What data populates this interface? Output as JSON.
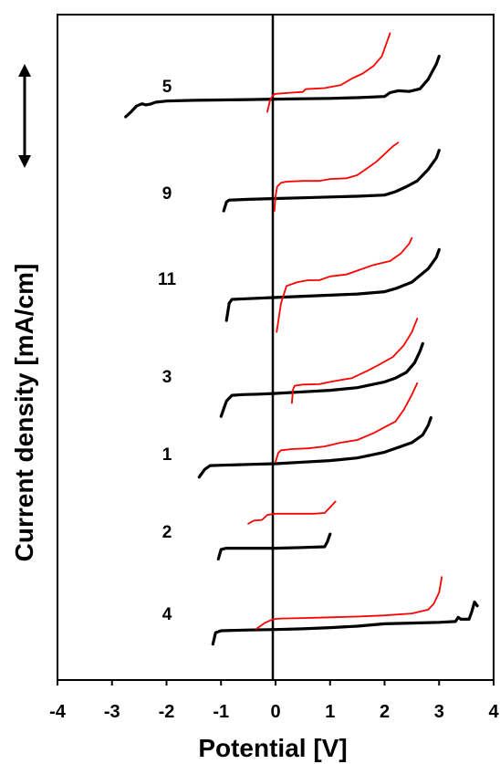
{
  "chart_data": {
    "type": "line",
    "title": "",
    "xlabel": "Potential [V]",
    "ylabel": "Current density [mA/cm]",
    "xlim": [
      -4,
      4
    ],
    "xticks": [
      "-4",
      "-3",
      "-2",
      "-1",
      "0",
      "1",
      "2",
      "3",
      "4"
    ],
    "y_scale_bar": "vertical double-headed arrow (scale indicator)",
    "colors": {
      "black_series": "#000000",
      "red_series": "#ff0000",
      "zero_line": "#000000"
    },
    "curves": [
      {
        "label": "5",
        "black": [
          [
            -2.75,
            -0.38
          ],
          [
            -2.65,
            -0.25
          ],
          [
            -2.55,
            -0.1
          ],
          [
            -2.45,
            -0.04
          ],
          [
            -2.38,
            -0.07
          ],
          [
            -2.3,
            -0.05
          ],
          [
            -2.2,
            0
          ],
          [
            -2.0,
            0.03
          ],
          [
            -1.5,
            0.05
          ],
          [
            -1.0,
            0.06
          ],
          [
            -0.5,
            0.07
          ],
          [
            0,
            0.08
          ],
          [
            0.5,
            0.09
          ],
          [
            1.0,
            0.1
          ],
          [
            1.5,
            0.12
          ],
          [
            2.0,
            0.15
          ],
          [
            2.1,
            0.25
          ],
          [
            2.25,
            0.3
          ],
          [
            2.45,
            0.28
          ],
          [
            2.65,
            0.35
          ],
          [
            2.8,
            0.6
          ],
          [
            2.95,
            1.0
          ],
          [
            3.0,
            1.2
          ]
        ],
        "red": [
          [
            -0.15,
            -0.25
          ],
          [
            -0.1,
            0.05
          ],
          [
            -0.05,
            0.18
          ],
          [
            0,
            0.22
          ],
          [
            0.3,
            0.25
          ],
          [
            0.5,
            0.27
          ],
          [
            0.55,
            0.34
          ],
          [
            0.9,
            0.37
          ],
          [
            1.2,
            0.45
          ],
          [
            1.4,
            0.62
          ],
          [
            1.6,
            0.75
          ],
          [
            1.8,
            0.95
          ],
          [
            1.95,
            1.2
          ],
          [
            2.05,
            1.6
          ],
          [
            2.1,
            1.8
          ]
        ]
      },
      {
        "label": "9",
        "black": [
          [
            -0.95,
            -0.38
          ],
          [
            -0.9,
            -0.15
          ],
          [
            -0.85,
            -0.1
          ],
          [
            -0.5,
            -0.08
          ],
          [
            0,
            -0.06
          ],
          [
            0.5,
            -0.04
          ],
          [
            1.0,
            -0.02
          ],
          [
            1.5,
            0
          ],
          [
            2.0,
            0.03
          ],
          [
            2.2,
            0.12
          ],
          [
            2.4,
            0.25
          ],
          [
            2.6,
            0.4
          ],
          [
            2.8,
            0.7
          ],
          [
            2.95,
            1.0
          ],
          [
            3.0,
            1.2
          ]
        ],
        "red": [
          [
            -0.02,
            -0.38
          ],
          [
            0,
            0
          ],
          [
            0.03,
            0.25
          ],
          [
            0.1,
            0.35
          ],
          [
            0.2,
            0.38
          ],
          [
            0.5,
            0.4
          ],
          [
            0.8,
            0.4
          ],
          [
            1.0,
            0.45
          ],
          [
            1.3,
            0.47
          ],
          [
            1.5,
            0.55
          ],
          [
            1.7,
            0.75
          ],
          [
            1.85,
            0.9
          ],
          [
            2.0,
            1.1
          ],
          [
            2.15,
            1.3
          ],
          [
            2.25,
            1.4
          ]
        ]
      },
      {
        "label": "11",
        "black": [
          [
            -0.9,
            -0.55
          ],
          [
            -0.85,
            -0.1
          ],
          [
            -0.8,
            0.0
          ],
          [
            -0.5,
            0.02
          ],
          [
            0,
            0.05
          ],
          [
            0.5,
            0.08
          ],
          [
            1.0,
            0.11
          ],
          [
            1.5,
            0.14
          ],
          [
            2.0,
            0.2
          ],
          [
            2.2,
            0.28
          ],
          [
            2.5,
            0.45
          ],
          [
            2.8,
            0.8
          ],
          [
            2.95,
            1.1
          ],
          [
            3.0,
            1.3
          ]
        ],
        "red": [
          [
            0.02,
            -0.85
          ],
          [
            0.1,
            -0.1
          ],
          [
            0.2,
            0.35
          ],
          [
            0.4,
            0.45
          ],
          [
            0.6,
            0.5
          ],
          [
            0.8,
            0.5
          ],
          [
            1.0,
            0.6
          ],
          [
            1.3,
            0.65
          ],
          [
            1.5,
            0.75
          ],
          [
            1.8,
            0.9
          ],
          [
            2.1,
            1.0
          ],
          [
            2.3,
            1.2
          ],
          [
            2.45,
            1.45
          ],
          [
            2.5,
            1.6
          ]
        ]
      },
      {
        "label": "3",
        "black": [
          [
            -1.0,
            -0.6
          ],
          [
            -0.9,
            -0.2
          ],
          [
            -0.8,
            -0.05
          ],
          [
            -0.6,
            -0.03
          ],
          [
            -0.3,
            -0.02
          ],
          [
            0,
            0
          ],
          [
            0.5,
            0.04
          ],
          [
            1.0,
            0.08
          ],
          [
            1.5,
            0.15
          ],
          [
            2.0,
            0.3
          ],
          [
            2.2,
            0.4
          ],
          [
            2.4,
            0.55
          ],
          [
            2.55,
            0.8
          ],
          [
            2.65,
            1.1
          ],
          [
            2.7,
            1.3
          ]
        ],
        "red": [
          [
            0.3,
            -0.25
          ],
          [
            0.32,
            0.1
          ],
          [
            0.35,
            0.2
          ],
          [
            0.5,
            0.23
          ],
          [
            0.8,
            0.24
          ],
          [
            1.0,
            0.3
          ],
          [
            1.4,
            0.4
          ],
          [
            1.7,
            0.6
          ],
          [
            1.9,
            0.75
          ],
          [
            2.15,
            0.95
          ],
          [
            2.35,
            1.25
          ],
          [
            2.5,
            1.6
          ],
          [
            2.6,
            1.95
          ]
        ]
      },
      {
        "label": "1",
        "black": [
          [
            -1.4,
            -0.35
          ],
          [
            -1.3,
            -0.15
          ],
          [
            -1.2,
            -0.05
          ],
          [
            -1.0,
            -0.04
          ],
          [
            -0.5,
            -0.02
          ],
          [
            0,
            0
          ],
          [
            0.5,
            0.04
          ],
          [
            1.0,
            0.08
          ],
          [
            1.5,
            0.15
          ],
          [
            2.0,
            0.3
          ],
          [
            2.3,
            0.45
          ],
          [
            2.5,
            0.55
          ],
          [
            2.7,
            0.75
          ],
          [
            2.8,
            1.0
          ],
          [
            2.85,
            1.2
          ]
        ],
        "red": [
          [
            0.0,
            0.05
          ],
          [
            0.05,
            0.28
          ],
          [
            0.1,
            0.35
          ],
          [
            0.3,
            0.38
          ],
          [
            0.6,
            0.4
          ],
          [
            0.9,
            0.45
          ],
          [
            1.2,
            0.55
          ],
          [
            1.5,
            0.62
          ],
          [
            1.8,
            0.8
          ],
          [
            2.0,
            0.95
          ],
          [
            2.2,
            1.1
          ],
          [
            2.35,
            1.4
          ],
          [
            2.5,
            1.8
          ],
          [
            2.6,
            2.1
          ]
        ]
      },
      {
        "label": "2",
        "black": [
          [
            -1.05,
            -0.2
          ],
          [
            -1.0,
            0.05
          ],
          [
            -0.9,
            0.08
          ],
          [
            -0.5,
            0.08
          ],
          [
            0,
            0.08
          ],
          [
            0.5,
            0.1
          ],
          [
            0.9,
            0.12
          ],
          [
            0.95,
            0.25
          ],
          [
            1.0,
            0.45
          ]
        ],
        "red": [
          [
            -0.5,
            0.72
          ],
          [
            -0.4,
            0.8
          ],
          [
            -0.25,
            0.82
          ],
          [
            -0.15,
            0.95
          ],
          [
            0,
            0.98
          ],
          [
            0.3,
            0.98
          ],
          [
            0.7,
            0.98
          ],
          [
            0.9,
            1.0
          ],
          [
            1.0,
            1.15
          ],
          [
            1.1,
            1.3
          ]
        ]
      },
      {
        "label": "4",
        "black": [
          [
            -1.15,
            -0.35
          ],
          [
            -1.1,
            -0.05
          ],
          [
            -1.0,
            0.0
          ],
          [
            -0.5,
            0.02
          ],
          [
            0,
            0.03
          ],
          [
            0.5,
            0.05
          ],
          [
            1.0,
            0.08
          ],
          [
            1.5,
            0.12
          ],
          [
            2.0,
            0.18
          ],
          [
            2.5,
            0.2
          ],
          [
            3.0,
            0.22
          ],
          [
            3.3,
            0.24
          ],
          [
            3.35,
            0.35
          ],
          [
            3.4,
            0.3
          ],
          [
            3.55,
            0.3
          ],
          [
            3.6,
            0.5
          ],
          [
            3.65,
            0.75
          ],
          [
            3.7,
            0.65
          ]
        ],
        "red": [
          [
            -0.35,
            0.05
          ],
          [
            -0.2,
            0.2
          ],
          [
            -0.05,
            0.3
          ],
          [
            0.1,
            0.32
          ],
          [
            0.5,
            0.33
          ],
          [
            1.0,
            0.35
          ],
          [
            1.5,
            0.37
          ],
          [
            2.0,
            0.4
          ],
          [
            2.5,
            0.45
          ],
          [
            2.8,
            0.55
          ],
          [
            2.9,
            0.7
          ],
          [
            3.0,
            1.0
          ],
          [
            3.05,
            1.4
          ]
        ]
      }
    ]
  }
}
